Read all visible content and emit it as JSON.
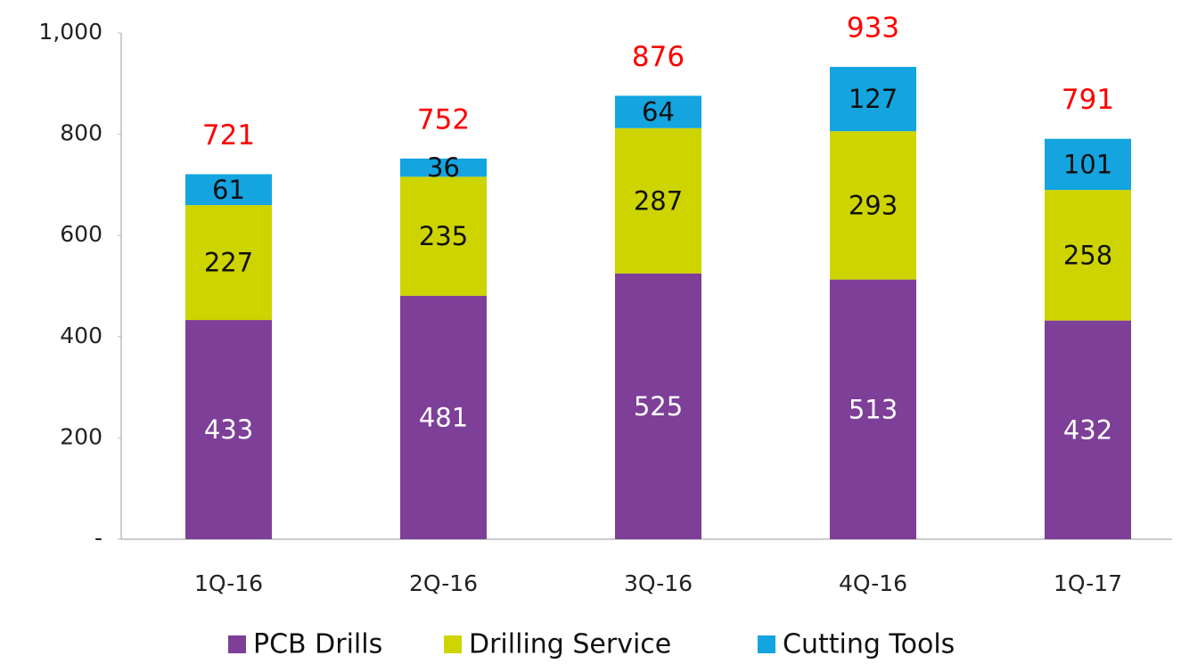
{
  "chart_data": {
    "type": "stacked_bar",
    "categories": [
      "1Q-16",
      "2Q-16",
      "3Q-16",
      "4Q-16",
      "1Q-17"
    ],
    "series": [
      {
        "name": "PCB Drills",
        "color": "#7e3f98",
        "values": [
          433,
          481,
          525,
          513,
          432
        ]
      },
      {
        "name": "Drilling Service",
        "color": "#cdd400",
        "values": [
          227,
          235,
          287,
          293,
          258
        ]
      },
      {
        "name": "Cutting Tools",
        "color": "#14a4e0",
        "values": [
          61,
          36,
          64,
          127,
          101
        ]
      }
    ],
    "totals": [
      721,
      752,
      876,
      933,
      791
    ],
    "ylim": [
      0,
      1000
    ],
    "yticks": [
      {
        "value": 0,
        "label": "-"
      },
      200,
      400,
      600,
      800,
      {
        "value": 1000,
        "label": "1,000"
      }
    ],
    "grid": false,
    "legend": "bottom"
  }
}
